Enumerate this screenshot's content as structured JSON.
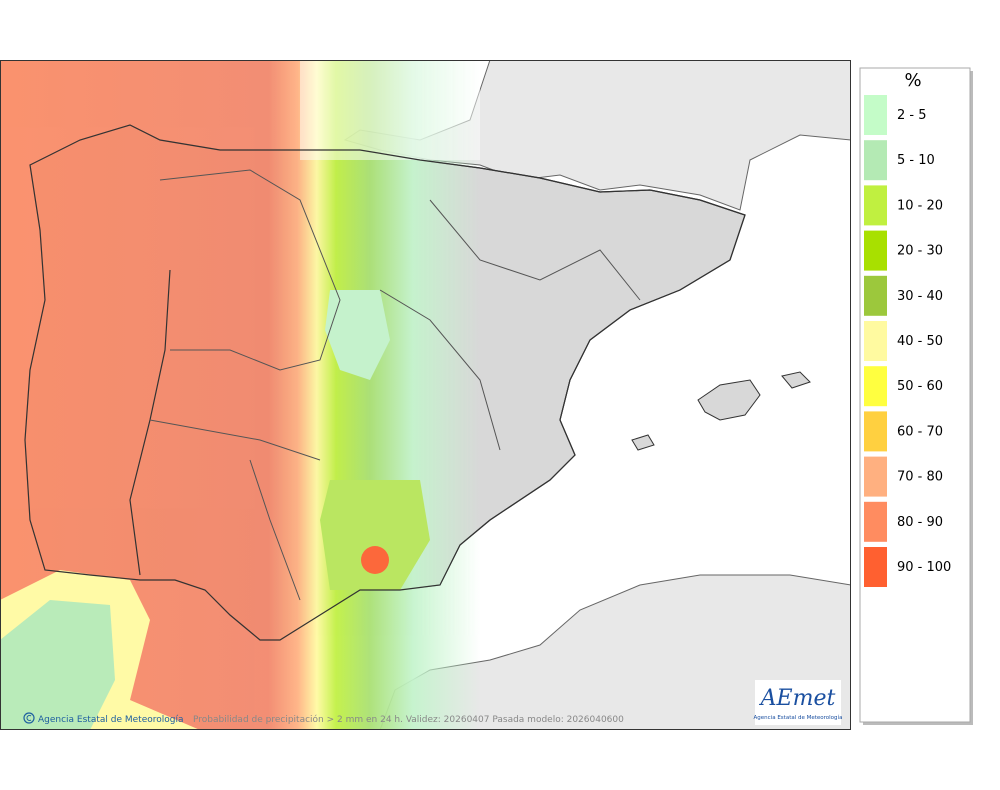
{
  "legend": {
    "title": "%",
    "items": [
      {
        "label": "2 - 5",
        "color": "#c4fcc8"
      },
      {
        "label": "5 - 10",
        "color": "#b4eab4"
      },
      {
        "label": "10 - 20",
        "color": "#c0f040"
      },
      {
        "label": "20 - 30",
        "color": "#a8e000"
      },
      {
        "label": "30 - 40",
        "color": "#9cc83c"
      },
      {
        "label": "40 - 50",
        "color": "#fffaa0"
      },
      {
        "label": "50 - 60",
        "color": "#ffff40"
      },
      {
        "label": "60 - 70",
        "color": "#ffd040"
      },
      {
        "label": "70 - 80",
        "color": "#ffb080"
      },
      {
        "label": "80 - 90",
        "color": "#ff8c60"
      },
      {
        "label": "90 - 100",
        "color": "#ff6030"
      }
    ]
  },
  "footer": {
    "agency": "Agencia Estatal de Meteorología",
    "caption": "Probabilidad de precipitación > 2 mm en 24 h. Validez: 20260407 Pasada modelo: 2026040600"
  },
  "logo": {
    "name": "AEmet",
    "subtitle": "Agencia Estatal de Meteorología"
  }
}
